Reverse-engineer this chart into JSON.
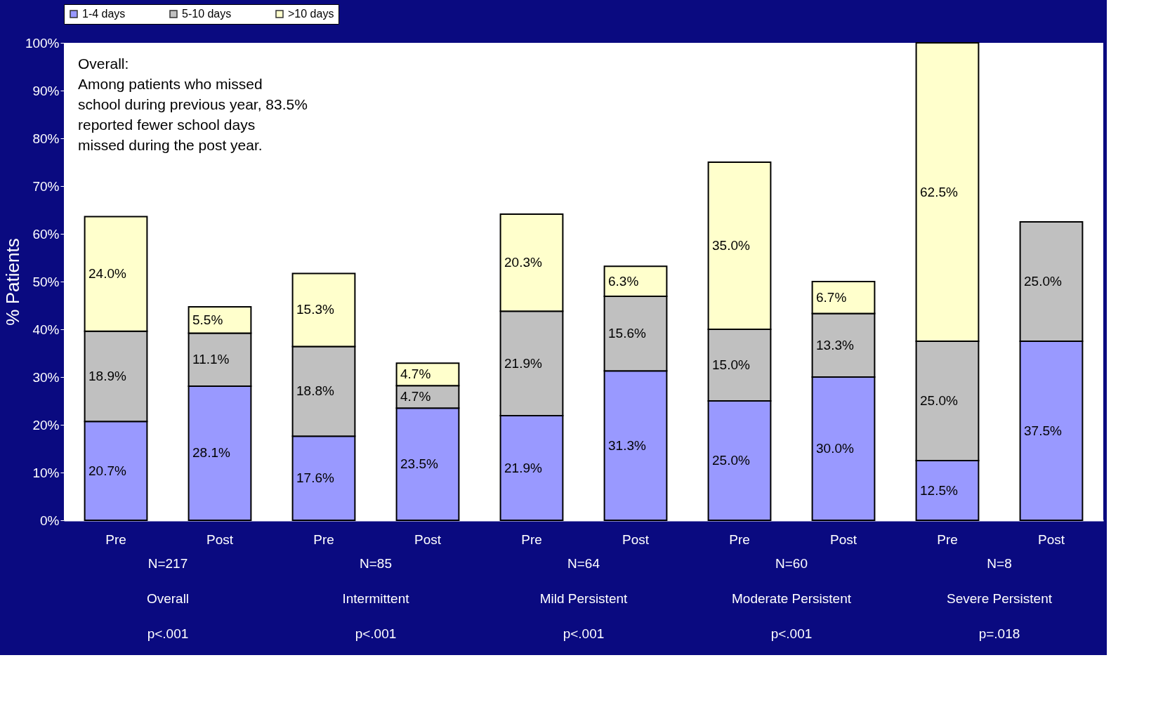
{
  "chart_data": {
    "type": "bar",
    "stacked": true,
    "ylabel": "% Patients",
    "categories": [
      "Pre",
      "Post",
      "Pre",
      "Post",
      "Pre",
      "Post",
      "Pre",
      "Post",
      "Pre",
      "Post"
    ],
    "series": [
      {
        "name": "1-4 days",
        "color": "#9999ff",
        "values": [
          20.7,
          28.1,
          17.6,
          23.5,
          21.9,
          31.3,
          25.0,
          30.0,
          12.5,
          37.5
        ],
        "value_labels": [
          "20.7%",
          "28.1%",
          "17.6%",
          "23.5%",
          "21.9%",
          "31.3%",
          "25.0%",
          "30.0%",
          "12.5%",
          "37.5%"
        ]
      },
      {
        "name": "5-10 days",
        "color": "#c0c0c0",
        "values": [
          18.9,
          11.1,
          18.8,
          4.7,
          21.9,
          15.6,
          15.0,
          13.3,
          25.0,
          25.0
        ],
        "value_labels": [
          "18.9%",
          "11.1%",
          "18.8%",
          "4.7%",
          "21.9%",
          "15.6%",
          "15.0%",
          "13.3%",
          "25.0%",
          "25.0%"
        ]
      },
      {
        "name": ">10 days",
        "color": "#ffffcc",
        "values": [
          24.0,
          5.5,
          15.3,
          4.7,
          20.3,
          6.3,
          35.0,
          6.7,
          62.5,
          null
        ],
        "value_labels": [
          "24.0%",
          "5.5%",
          "15.3%",
          "4.7%",
          "20.3%",
          "6.3%",
          "35.0%",
          "6.7%",
          "62.5%",
          null
        ]
      }
    ],
    "ylim": [
      0,
      100
    ],
    "yticks": [
      {
        "value": 0,
        "label": "0%"
      },
      {
        "value": 10,
        "label": "10%"
      },
      {
        "value": 20,
        "label": "20%"
      },
      {
        "value": 30,
        "label": "30%"
      },
      {
        "value": 40,
        "label": "40%"
      },
      {
        "value": 50,
        "label": "50%"
      },
      {
        "value": 60,
        "label": "60%"
      },
      {
        "value": 70,
        "label": "70%"
      },
      {
        "value": 80,
        "label": "80%"
      },
      {
        "value": 90,
        "label": "90%"
      },
      {
        "value": 100,
        "label": "100%"
      }
    ],
    "legend": "top",
    "grid": false,
    "annotations": [
      "Overall:\nAmong patients who missed\nschool during previous year, 83.5%\nreported fewer school days\nmissed during the post year.",
      "N=217",
      "Overall",
      "p<.001",
      "N=85",
      "Intermittent",
      "p<.001",
      "N=64",
      "Mild Persistent",
      "p<.001",
      "N=60",
      "Moderate Persistent",
      "p<.001",
      "N=8",
      "Severe Persistent",
      "p=.018"
    ]
  }
}
